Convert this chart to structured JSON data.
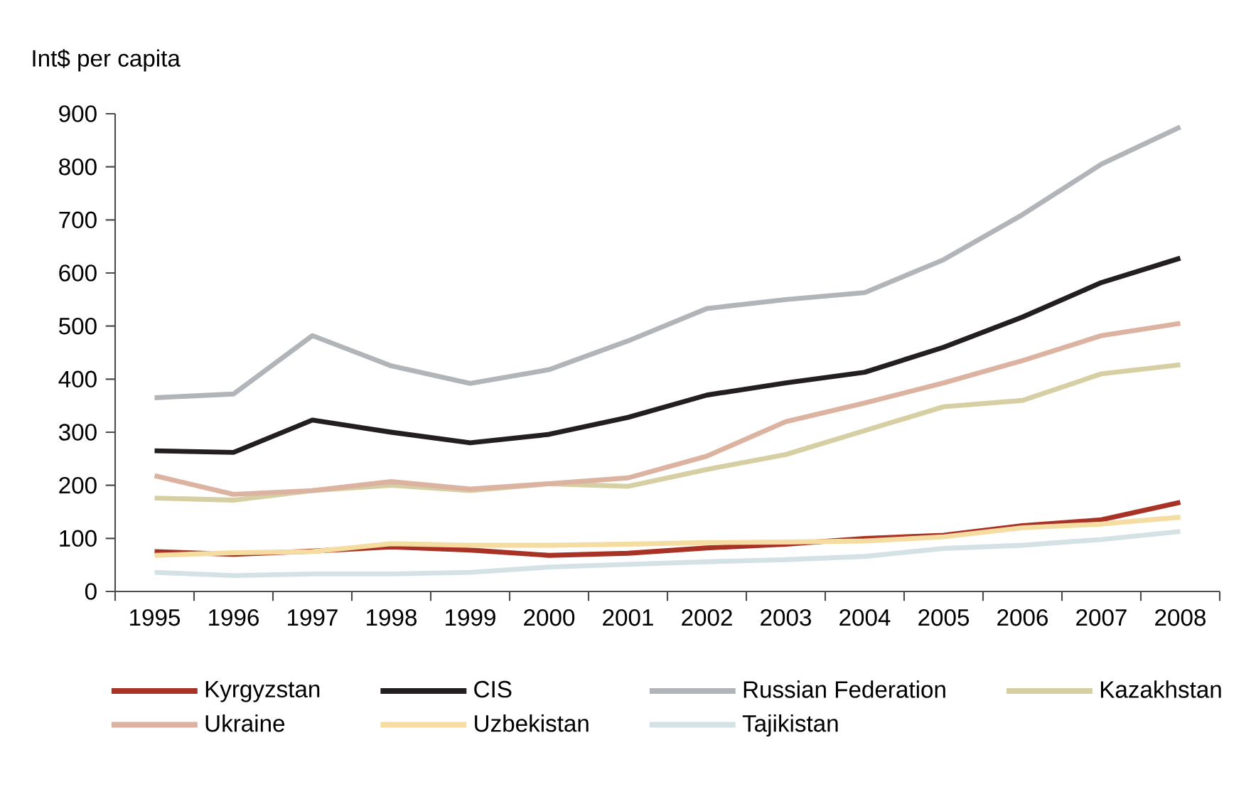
{
  "chart_data": {
    "type": "line",
    "ylabel": "Int$ per capita",
    "categories": [
      "1995",
      "1996",
      "1997",
      "1998",
      "1999",
      "2000",
      "2001",
      "2002",
      "2003",
      "2004",
      "2005",
      "2006",
      "2007",
      "2008"
    ],
    "ylim": [
      0,
      900
    ],
    "yticks": [
      0,
      100,
      200,
      300,
      400,
      500,
      600,
      700,
      800,
      900
    ],
    "legend": "bottom",
    "series": [
      {
        "name": "Kyrgyzstan",
        "color": "#a93226",
        "values": [
          75,
          70,
          76,
          84,
          78,
          68,
          72,
          82,
          89,
          100,
          106,
          124,
          135,
          168
        ]
      },
      {
        "name": "CIS",
        "color": "#231f20",
        "values": [
          265,
          262,
          323,
          300,
          280,
          296,
          328,
          370,
          393,
          413,
          460,
          517,
          582,
          628
        ]
      },
      {
        "name": "Russian Federation",
        "color": "#b1b5b9",
        "values": [
          365,
          372,
          482,
          425,
          392,
          418,
          472,
          533,
          550,
          563,
          625,
          710,
          805,
          875
        ]
      },
      {
        "name": "Kazakhstan",
        "color": "#d6cfa3",
        "values": [
          176,
          172,
          190,
          200,
          190,
          203,
          198,
          230,
          258,
          303,
          348,
          360,
          410,
          427
        ]
      },
      {
        "name": "Ukraine",
        "color": "#dcb2a0",
        "values": [
          218,
          183,
          190,
          207,
          193,
          203,
          214,
          255,
          320,
          355,
          393,
          435,
          482,
          505
        ]
      },
      {
        "name": "Uzbekistan",
        "color": "#f5dca0",
        "values": [
          68,
          73,
          75,
          90,
          87,
          87,
          89,
          92,
          93,
          95,
          103,
          120,
          127,
          140
        ]
      },
      {
        "name": "Tajikistan",
        "color": "#d5e2e5",
        "values": [
          36,
          30,
          33,
          33,
          36,
          46,
          51,
          56,
          60,
          66,
          81,
          87,
          98,
          113
        ]
      }
    ]
  }
}
